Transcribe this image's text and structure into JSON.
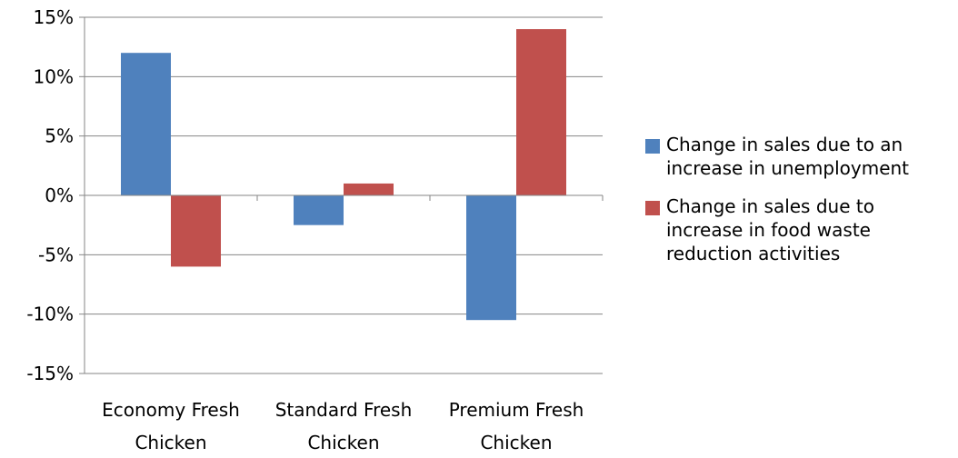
{
  "chart_data": {
    "type": "bar",
    "categories": [
      [
        "Economy Fresh",
        "Chicken"
      ],
      [
        "Standard Fresh",
        "Chicken"
      ],
      [
        "Premium Fresh",
        "Chicken"
      ]
    ],
    "series": [
      {
        "name": "Change in sales due to an increase in unemployment",
        "color": "#4F81BD",
        "values": [
          12,
          -2.5,
          -10.5
        ]
      },
      {
        "name": "Change in sales due to increase in food waste reduction activities",
        "color": "#C0504D",
        "values": [
          -6,
          1,
          14
        ]
      }
    ],
    "ylim": [
      -15,
      15
    ],
    "y_ticks": [
      -15,
      -10,
      -5,
      0,
      5,
      10,
      15
    ],
    "y_tick_labels": [
      "-15%",
      "-10%",
      "-5%",
      "0%",
      "5%",
      "10%",
      "15%"
    ],
    "title": "",
    "xlabel": "",
    "ylabel": "",
    "grid": true,
    "legend_placement": "right"
  }
}
